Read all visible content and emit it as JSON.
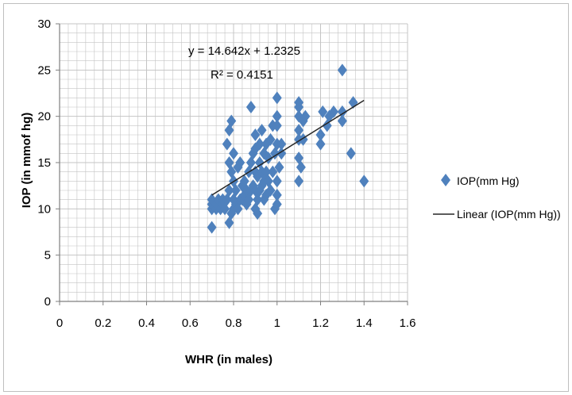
{
  "chart_data": {
    "type": "scatter",
    "xlabel": "WHR (in males)",
    "ylabel": "IOP (in mmof hg)",
    "xlim": [
      0,
      1.6
    ],
    "ylim": [
      0,
      30
    ],
    "xticks": [
      "0",
      "0.2",
      "0.4",
      "0.6",
      "0.8",
      "1",
      "1.2",
      "1.4",
      "1.6"
    ],
    "yticks": [
      "0",
      "5",
      "10",
      "15",
      "20",
      "25",
      "30"
    ],
    "grid": true,
    "legend_position": "right",
    "marker_color": "#4f81bd",
    "trendline_color": "#262626",
    "trendline": {
      "name": "Linear (IOP(mm Hg))",
      "slope": 14.642,
      "intercept": 1.2325,
      "x_range": [
        0.7,
        1.4
      ],
      "equation": "y = 14.642x + 1.2325",
      "r2": "R² = 0.4151"
    },
    "series": [
      {
        "name": "IOP(mm Hg)",
        "points": [
          [
            0.7,
            8
          ],
          [
            0.7,
            10
          ],
          [
            0.7,
            10.5
          ],
          [
            0.7,
            11
          ],
          [
            0.72,
            10
          ],
          [
            0.72,
            10.5
          ],
          [
            0.73,
            11
          ],
          [
            0.74,
            10
          ],
          [
            0.75,
            10.5
          ],
          [
            0.75,
            11
          ],
          [
            0.76,
            10
          ],
          [
            0.77,
            11
          ],
          [
            0.77,
            17
          ],
          [
            0.78,
            8.5
          ],
          [
            0.78,
            12
          ],
          [
            0.78,
            15
          ],
          [
            0.78,
            18.5
          ],
          [
            0.79,
            9.5
          ],
          [
            0.79,
            14
          ],
          [
            0.79,
            19.5
          ],
          [
            0.8,
            10
          ],
          [
            0.8,
            11
          ],
          [
            0.8,
            13
          ],
          [
            0.8,
            16
          ],
          [
            0.81,
            10.5
          ],
          [
            0.81,
            12
          ],
          [
            0.82,
            10
          ],
          [
            0.82,
            14.5
          ],
          [
            0.83,
            11
          ],
          [
            0.83,
            15
          ],
          [
            0.84,
            11
          ],
          [
            0.84,
            12.5
          ],
          [
            0.85,
            11.5
          ],
          [
            0.85,
            13
          ],
          [
            0.86,
            10.5
          ],
          [
            0.86,
            12
          ],
          [
            0.87,
            11
          ],
          [
            0.87,
            14
          ],
          [
            0.88,
            12
          ],
          [
            0.88,
            15
          ],
          [
            0.88,
            21
          ],
          [
            0.89,
            12.5
          ],
          [
            0.89,
            16
          ],
          [
            0.9,
            10
          ],
          [
            0.9,
            12
          ],
          [
            0.9,
            14
          ],
          [
            0.9,
            16.5
          ],
          [
            0.9,
            18
          ],
          [
            0.91,
            9.5
          ],
          [
            0.91,
            11
          ],
          [
            0.91,
            13.5
          ],
          [
            0.92,
            12
          ],
          [
            0.92,
            15
          ],
          [
            0.92,
            17
          ],
          [
            0.93,
            12.5
          ],
          [
            0.93,
            14
          ],
          [
            0.93,
            18.5
          ],
          [
            0.94,
            11
          ],
          [
            0.94,
            13
          ],
          [
            0.94,
            16
          ],
          [
            0.95,
            14
          ],
          [
            0.95,
            17
          ],
          [
            0.95,
            11.5
          ],
          [
            0.96,
            13
          ],
          [
            0.96,
            15.5
          ],
          [
            0.97,
            12
          ],
          [
            0.97,
            17.5
          ],
          [
            0.98,
            14
          ],
          [
            0.98,
            19
          ],
          [
            0.99,
            10
          ],
          [
            0.99,
            16
          ],
          [
            1.0,
            10.5
          ],
          [
            1.0,
            11.5
          ],
          [
            1.0,
            13
          ],
          [
            1.0,
            17
          ],
          [
            1.0,
            19
          ],
          [
            1.0,
            20
          ],
          [
            1.0,
            22
          ],
          [
            1.01,
            14.5
          ],
          [
            1.02,
            16
          ],
          [
            1.02,
            17
          ],
          [
            1.1,
            13
          ],
          [
            1.1,
            15.5
          ],
          [
            1.1,
            17.5
          ],
          [
            1.1,
            18.5
          ],
          [
            1.1,
            20
          ],
          [
            1.1,
            21
          ],
          [
            1.1,
            21.5
          ],
          [
            1.11,
            14.5
          ],
          [
            1.12,
            17.5
          ],
          [
            1.12,
            19.5
          ],
          [
            1.13,
            20
          ],
          [
            1.2,
            17
          ],
          [
            1.2,
            18
          ],
          [
            1.21,
            20.5
          ],
          [
            1.23,
            19
          ],
          [
            1.24,
            20
          ],
          [
            1.26,
            20.5
          ],
          [
            1.3,
            19.5
          ],
          [
            1.3,
            20.5
          ],
          [
            1.3,
            25
          ],
          [
            1.34,
            16
          ],
          [
            1.35,
            21.5
          ],
          [
            1.4,
            13
          ]
        ]
      }
    ]
  }
}
